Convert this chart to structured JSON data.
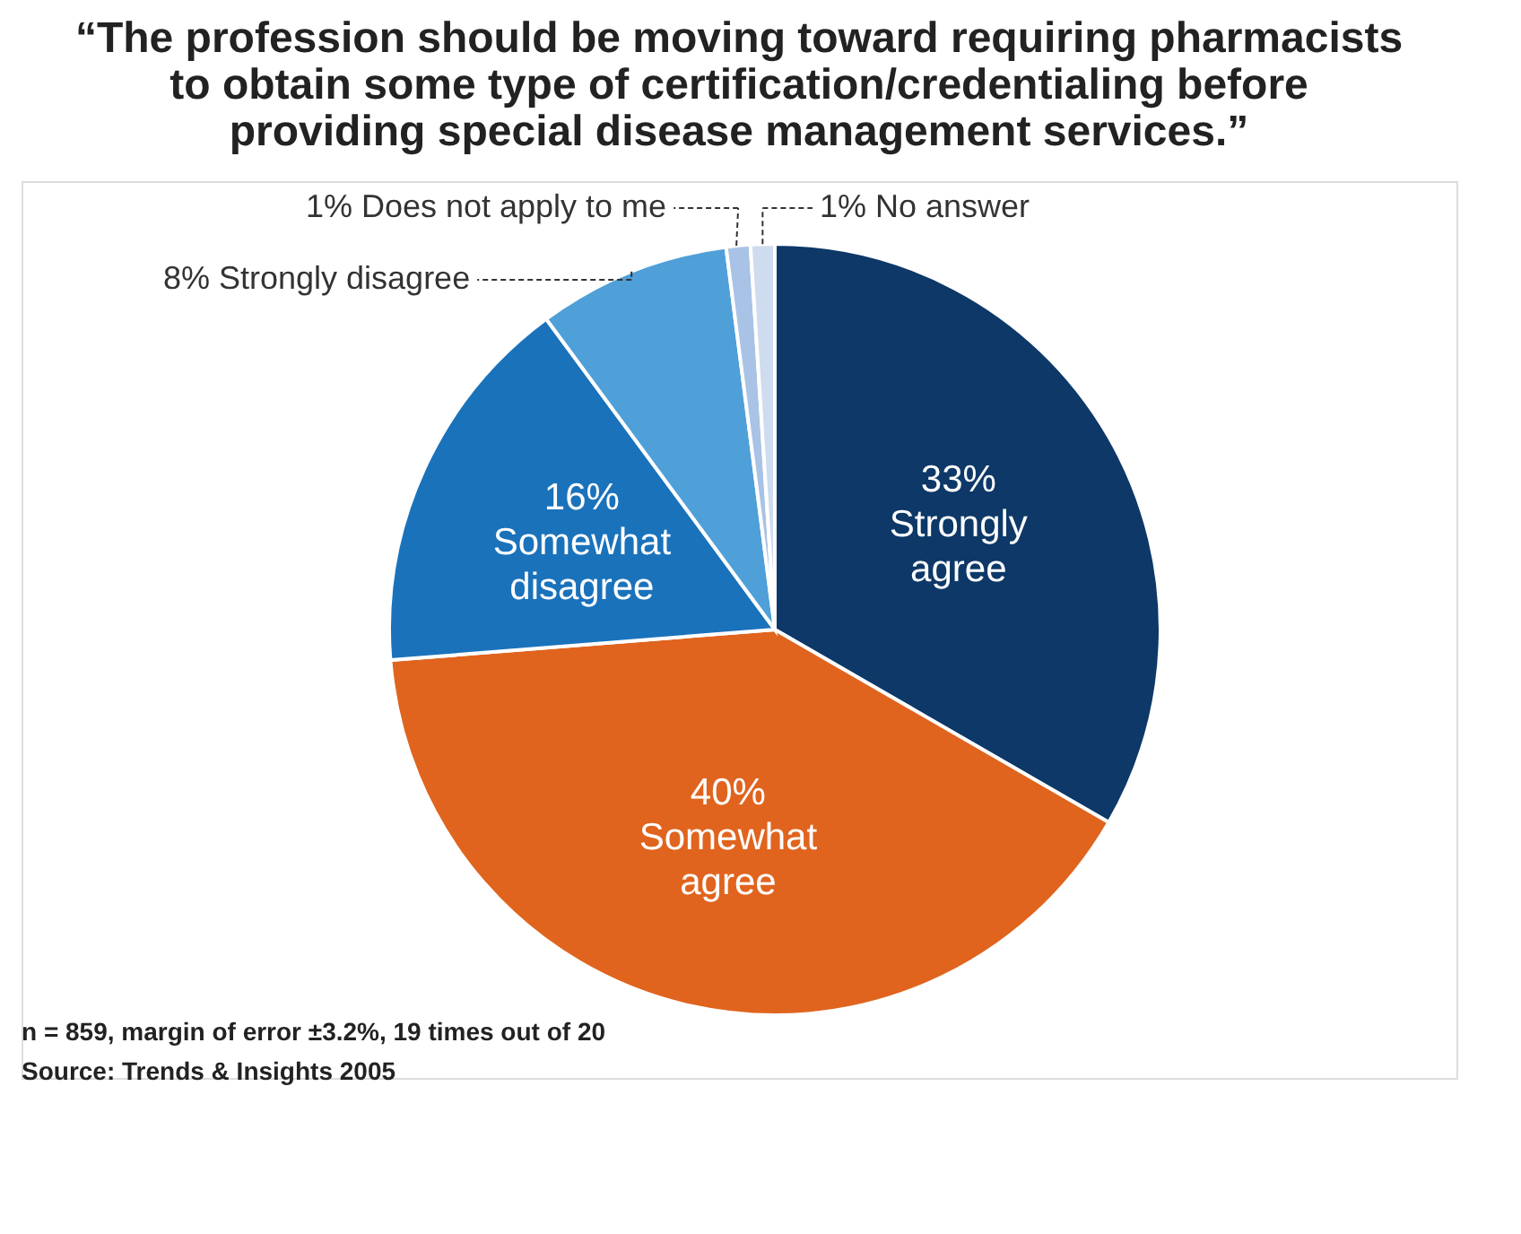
{
  "chart_data": {
    "type": "pie",
    "title": "“The profession should be moving toward requiring pharmacists to obtain some type of certification/credentialing before providing special disease management services.”",
    "categories": [
      "Strongly agree",
      "Somewhat agree",
      "Somewhat disagree",
      "Strongly disagree",
      "Does not apply to me",
      "No answer"
    ],
    "values": [
      33,
      40,
      16,
      8,
      1,
      1
    ],
    "colors": [
      "#0d3868",
      "#e0641e",
      "#1a72bb",
      "#4f9fd8",
      "#a9c3e6",
      "#cfdcef"
    ],
    "value_labels": [
      "33%",
      "40%",
      "16%",
      "8%",
      "1%",
      "1%"
    ],
    "annotations": [
      "n = 859, margin of error ±3.2%, 19 times out of 20",
      "Source: Trends & Insights 2005"
    ]
  }
}
